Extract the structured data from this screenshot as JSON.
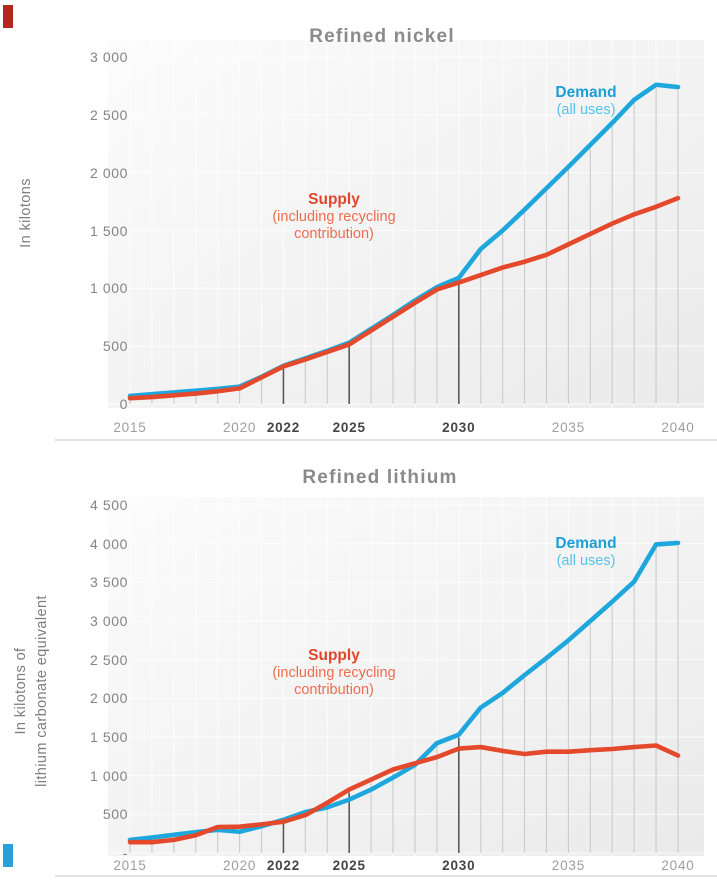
{
  "colors": {
    "demand": "#1EA7DC",
    "supply": "#E4492C",
    "demand_label": "#1B9FD6",
    "demand_sub": "#55C2EA",
    "supply_label": "#E2462A",
    "supply_sub": "#EE6C4E",
    "title": "#8A8A8A",
    "ytick": "#848484",
    "xtick": "#9E9E9E",
    "xtick_bold": "#454545",
    "ylabel": "#7D7D7D",
    "dropline": "#CDCDCD",
    "dropline_dark": "#5A5A5A",
    "divider": "#E3E3E3",
    "plot_bg_start": "#FCFCFC",
    "plot_bg_end": "#EAEAEA",
    "corner_red": "#B4271E",
    "corner_blue": "#2B9FD9"
  },
  "chart_data": [
    {
      "type": "line",
      "title": "Refined nickel",
      "ylabel": "In kilotons",
      "ylabel_lines": [
        "In kilotons"
      ],
      "xlabel": "",
      "x": [
        2015,
        2016,
        2017,
        2018,
        2019,
        2020,
        2021,
        2022,
        2023,
        2024,
        2025,
        2026,
        2027,
        2028,
        2029,
        2030,
        2031,
        2032,
        2033,
        2034,
        2035,
        2036,
        2037,
        2038,
        2039,
        2040
      ],
      "series": [
        {
          "name": "Demand (all uses)",
          "color_key": "demand",
          "values": [
            70,
            85,
            100,
            115,
            130,
            150,
            235,
            330,
            395,
            460,
            530,
            650,
            770,
            895,
            1010,
            1090,
            1340,
            1500,
            1680,
            1865,
            2050,
            2240,
            2430,
            2630,
            2760,
            2740
          ]
        },
        {
          "name": "Supply (including recycling contribution)",
          "color_key": "supply",
          "values": [
            50,
            60,
            75,
            90,
            110,
            135,
            230,
            325,
            385,
            450,
            515,
            635,
            755,
            875,
            990,
            1050,
            1115,
            1180,
            1230,
            1290,
            1380,
            1470,
            1560,
            1640,
            1705,
            1780
          ]
        }
      ],
      "ylim": [
        0,
        3000
      ],
      "xlim": [
        2015,
        2040
      ],
      "grid": true,
      "legend_position": "annotations-inline",
      "y_ticks": [
        {
          "value": 3000,
          "label": "3 000"
        },
        {
          "value": 2500,
          "label": "2 500"
        },
        {
          "value": 2000,
          "label": "2 000"
        },
        {
          "value": 1500,
          "label": "1 500"
        },
        {
          "value": 1000,
          "label": "1 000"
        },
        {
          "value": 500,
          "label": "500"
        },
        {
          "value": 0,
          "label": "0"
        }
      ],
      "x_ticks": [
        {
          "year": 2015,
          "label": "2015",
          "bold": false
        },
        {
          "year": 2020,
          "label": "2020",
          "bold": false
        },
        {
          "year": 2022,
          "label": "2022",
          "bold": true
        },
        {
          "year": 2025,
          "label": "2025",
          "bold": true
        },
        {
          "year": 2030,
          "label": "2030",
          "bold": true
        },
        {
          "year": 2035,
          "label": "2035",
          "bold": false
        },
        {
          "year": 2040,
          "label": "2040",
          "bold": false
        }
      ],
      "dark_dropline_years": [
        2022,
        2025,
        2030
      ],
      "annotations": {
        "demand": {
          "title": "Demand",
          "subtitle": "(all uses)"
        },
        "supply": {
          "title": "Supply",
          "lines": [
            "(including recycling",
            "contribution)"
          ]
        }
      }
    },
    {
      "type": "line",
      "title": "Refined lithium",
      "ylabel": "In kilotons of lithium carbonate equivalent",
      "ylabel_lines": [
        "In kilotons of",
        "lithium carbonate equivalent"
      ],
      "xlabel": "",
      "x": [
        2015,
        2016,
        2017,
        2018,
        2019,
        2020,
        2021,
        2022,
        2023,
        2024,
        2025,
        2026,
        2027,
        2028,
        2029,
        2030,
        2031,
        2032,
        2033,
        2034,
        2035,
        2036,
        2037,
        2038,
        2039,
        2040
      ],
      "series": [
        {
          "name": "Demand (all uses)",
          "color_key": "demand",
          "values": [
            170,
            200,
            235,
            270,
            300,
            275,
            345,
            430,
            530,
            590,
            690,
            820,
            975,
            1140,
            1420,
            1530,
            1880,
            2070,
            2300,
            2520,
            2750,
            3000,
            3250,
            3510,
            3990,
            4010
          ]
        },
        {
          "name": "Supply (including recycling contribution)",
          "color_key": "supply",
          "values": [
            140,
            140,
            170,
            230,
            335,
            340,
            370,
            405,
            490,
            650,
            820,
            950,
            1080,
            1160,
            1240,
            1350,
            1370,
            1320,
            1280,
            1310,
            1310,
            1330,
            1345,
            1370,
            1390,
            1260
          ]
        }
      ],
      "ylim": [
        0,
        4500
      ],
      "xlim": [
        2015,
        2040
      ],
      "grid": true,
      "legend_position": "annotations-inline",
      "y_ticks": [
        {
          "value": 4500,
          "label": "4 500"
        },
        {
          "value": 4000,
          "label": "4 000"
        },
        {
          "value": 3500,
          "label": "3 500"
        },
        {
          "value": 3000,
          "label": "3 000"
        },
        {
          "value": 2500,
          "label": "2 500"
        },
        {
          "value": 2000,
          "label": "2 000"
        },
        {
          "value": 1500,
          "label": "1 500"
        },
        {
          "value": 1000,
          "label": "1 000"
        },
        {
          "value": 500,
          "label": "500"
        },
        {
          "value": 0,
          "label": "-"
        }
      ],
      "x_ticks": [
        {
          "year": 2015,
          "label": "2015",
          "bold": false
        },
        {
          "year": 2020,
          "label": "2020",
          "bold": false
        },
        {
          "year": 2022,
          "label": "2022",
          "bold": true
        },
        {
          "year": 2025,
          "label": "2025",
          "bold": true
        },
        {
          "year": 2030,
          "label": "2030",
          "bold": true
        },
        {
          "year": 2035,
          "label": "2035",
          "bold": false
        },
        {
          "year": 2040,
          "label": "2040",
          "bold": false
        }
      ],
      "dark_dropline_years": [
        2022,
        2025,
        2030
      ],
      "annotations": {
        "demand": {
          "title": "Demand",
          "subtitle": "(all uses)"
        },
        "supply": {
          "title": "Supply",
          "lines": [
            "(including recycling",
            "contribution)"
          ]
        }
      }
    }
  ]
}
